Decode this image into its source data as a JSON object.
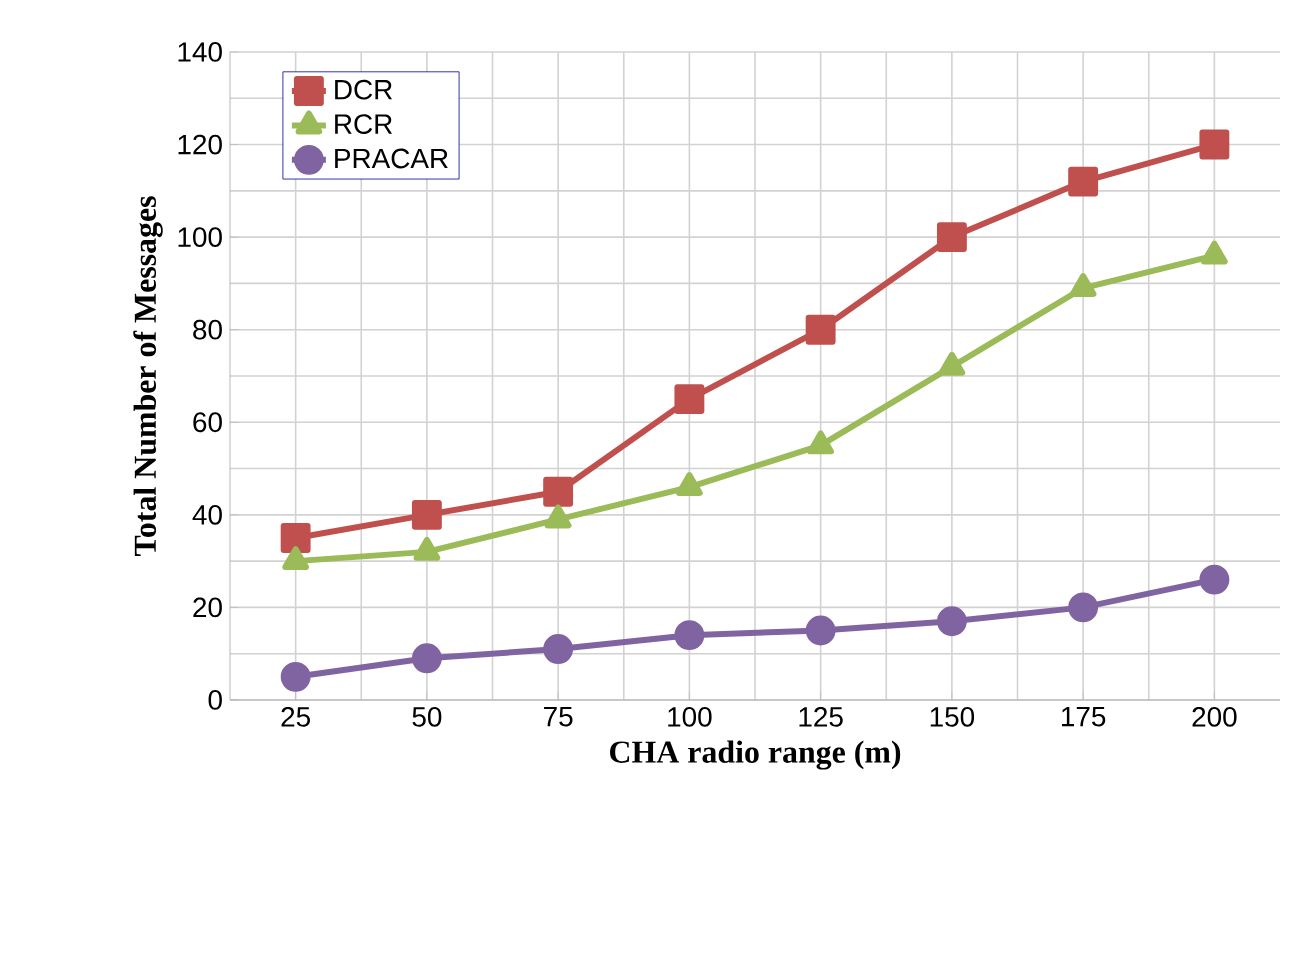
{
  "chart_data": {
    "type": "line",
    "xlabel": "CHA radio range (m)",
    "ylabel": "Total Number of Messages",
    "categories": [
      "25",
      "50",
      "75",
      "100",
      "125",
      "150",
      "175",
      "200"
    ],
    "series": [
      {
        "name": "DCR",
        "color": "#c0504d",
        "marker": "square",
        "values": [
          35,
          40,
          45,
          65,
          80,
          100,
          112,
          120
        ]
      },
      {
        "name": "RCR",
        "color": "#9bbb59",
        "marker": "triangle",
        "values": [
          30,
          32,
          39,
          46,
          55,
          72,
          89,
          96
        ]
      },
      {
        "name": "PRACAR",
        "color": "#8064a2",
        "marker": "circle",
        "values": [
          5,
          9,
          11,
          14,
          15,
          17,
          20,
          26
        ]
      }
    ],
    "ylim": [
      0,
      140
    ],
    "yticks": [
      0,
      20,
      40,
      60,
      80,
      100,
      120,
      140
    ],
    "grid": true,
    "legend": "top left"
  }
}
